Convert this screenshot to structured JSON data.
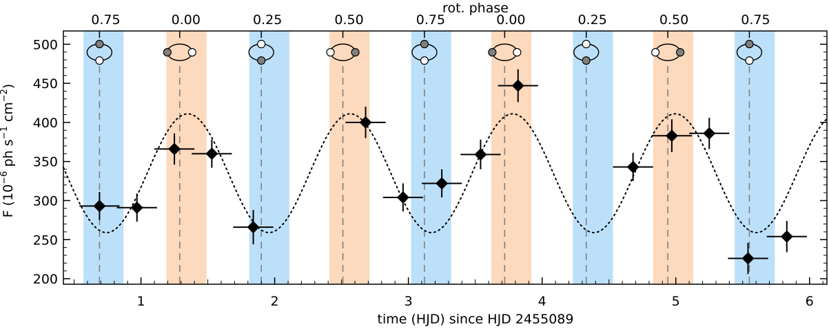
{
  "chart_data": {
    "type": "scatter",
    "title": "",
    "xlabel": "time (HJD) since HJD 2455089",
    "ylabel": "F (10^-6 ph s^-1 cm^-2)",
    "ylabel_parts": {
      "prefix": "F (10",
      "exp1": "−6",
      "mid1": " ph s",
      "exp2": "−1",
      "mid2": " cm",
      "exp3": "−2",
      "suffix": ")"
    },
    "top_xlabel": "rot. phase",
    "xlim": [
      0.42,
      6.13
    ],
    "ylim": [
      193,
      517
    ],
    "x_ticks": [
      1,
      2,
      3,
      4,
      5,
      6
    ],
    "x_tick_labels": [
      "1",
      "2",
      "3",
      "4",
      "5",
      "6"
    ],
    "y_ticks": [
      200,
      250,
      300,
      350,
      400,
      450,
      500
    ],
    "y_tick_labels": [
      "200",
      "250",
      "300",
      "350",
      "400",
      "450",
      "500"
    ],
    "top_ticks": [
      0.69,
      1.29,
      1.9,
      2.51,
      3.12,
      3.72,
      4.33,
      4.94,
      5.55
    ],
    "top_tick_labels": [
      "0.75",
      "0.00",
      "0.25",
      "0.50",
      "0.75",
      "0.00",
      "0.25",
      "0.50",
      "0.75"
    ],
    "bands": [
      {
        "x0": 0.57,
        "x1": 0.87,
        "color": "#bde0fa"
      },
      {
        "x0": 1.19,
        "x1": 1.49,
        "color": "#fdd9bd"
      },
      {
        "x0": 1.81,
        "x1": 2.11,
        "color": "#bde0fa"
      },
      {
        "x0": 2.41,
        "x1": 2.71,
        "color": "#fdd9bd"
      },
      {
        "x0": 3.02,
        "x1": 3.32,
        "color": "#bde0fa"
      },
      {
        "x0": 3.62,
        "x1": 3.92,
        "color": "#fdd9bd"
      },
      {
        "x0": 4.23,
        "x1": 4.53,
        "color": "#bde0fa"
      },
      {
        "x0": 4.83,
        "x1": 5.13,
        "color": "#fdd9bd"
      },
      {
        "x0": 5.44,
        "x1": 5.74,
        "color": "#bde0fa"
      }
    ],
    "vlines": [
      0.69,
      1.29,
      1.9,
      2.51,
      3.12,
      3.72,
      4.33,
      4.94,
      5.55
    ],
    "orbit_icons": [
      {
        "x": 0.69,
        "orientation": "vertical",
        "first": "#808080",
        "second": "#ffffff"
      },
      {
        "x": 1.29,
        "orientation": "horizontal",
        "first": "#808080",
        "second": "#ffffff"
      },
      {
        "x": 1.9,
        "orientation": "vertical",
        "first": "#ffffff",
        "second": "#808080"
      },
      {
        "x": 2.51,
        "orientation": "horizontal",
        "first": "#ffffff",
        "second": "#808080"
      },
      {
        "x": 3.12,
        "orientation": "vertical",
        "first": "#808080",
        "second": "#ffffff"
      },
      {
        "x": 3.72,
        "orientation": "horizontal",
        "first": "#808080",
        "second": "#ffffff"
      },
      {
        "x": 4.33,
        "orientation": "vertical",
        "first": "#ffffff",
        "second": "#808080"
      },
      {
        "x": 4.94,
        "orientation": "horizontal",
        "first": "#ffffff",
        "second": "#808080"
      },
      {
        "x": 5.55,
        "orientation": "vertical",
        "first": "#808080",
        "second": "#ffffff"
      }
    ],
    "model_curve": {
      "name": "sinusoidal model",
      "mean": 335,
      "amplitude": 76,
      "period": 1.215,
      "peak_x": 1.35,
      "style": "dotted"
    },
    "series": [
      {
        "name": "flux",
        "points": [
          {
            "x": 0.69,
            "y": 293,
            "xerr": 0.15,
            "yerr": 18
          },
          {
            "x": 0.97,
            "y": 291,
            "xerr": 0.15,
            "yerr": 18
          },
          {
            "x": 1.25,
            "y": 366,
            "xerr": 0.15,
            "yerr": 20
          },
          {
            "x": 1.53,
            "y": 360,
            "xerr": 0.15,
            "yerr": 18
          },
          {
            "x": 1.84,
            "y": 266,
            "xerr": 0.15,
            "yerr": 22
          },
          {
            "x": 2.68,
            "y": 400,
            "xerr": 0.15,
            "yerr": 20
          },
          {
            "x": 2.96,
            "y": 304,
            "xerr": 0.15,
            "yerr": 18
          },
          {
            "x": 3.25,
            "y": 322,
            "xerr": 0.15,
            "yerr": 18
          },
          {
            "x": 3.54,
            "y": 359,
            "xerr": 0.15,
            "yerr": 19
          },
          {
            "x": 3.82,
            "y": 447,
            "xerr": 0.15,
            "yerr": 21
          },
          {
            "x": 4.68,
            "y": 343,
            "xerr": 0.15,
            "yerr": 18
          },
          {
            "x": 4.97,
            "y": 383,
            "xerr": 0.15,
            "yerr": 21
          },
          {
            "x": 5.25,
            "y": 386,
            "xerr": 0.15,
            "yerr": 20
          },
          {
            "x": 5.54,
            "y": 226,
            "xerr": 0.15,
            "yerr": 20
          },
          {
            "x": 5.83,
            "y": 254,
            "xerr": 0.15,
            "yerr": 20
          }
        ]
      }
    ]
  }
}
